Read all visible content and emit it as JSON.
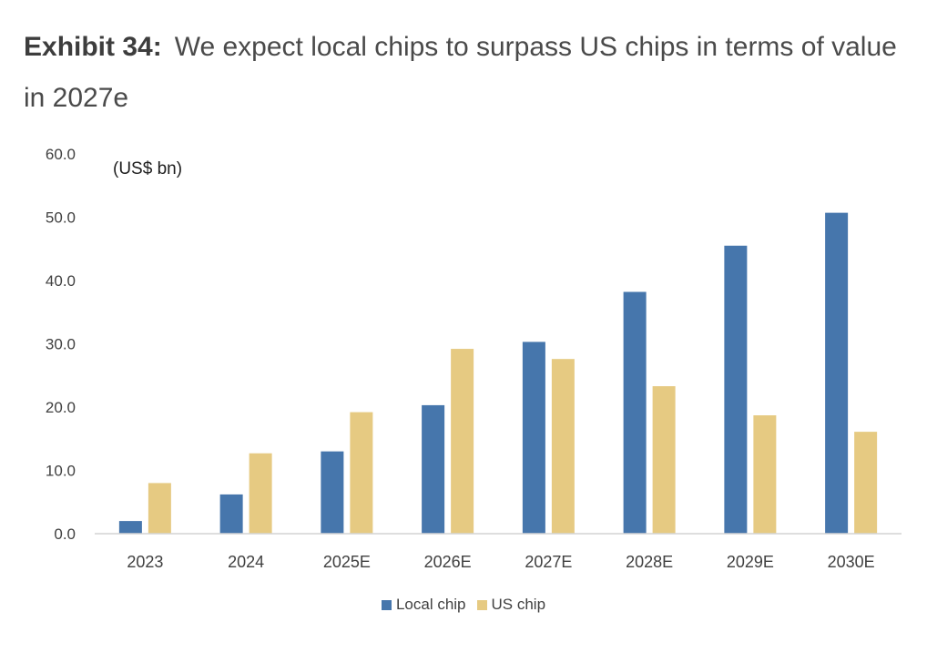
{
  "header": {
    "exhibit_label": "Exhibit 34:",
    "title_text": "We expect local chips to surpass US chips in terms of value in 2027e"
  },
  "chart_data": {
    "type": "bar",
    "title": "We expect local chips to surpass US chips in terms of value in 2027e",
    "unit_label": "(US$ bn)",
    "xlabel": "",
    "ylabel": "",
    "categories": [
      "2023",
      "2024",
      "2025E",
      "2026E",
      "2027E",
      "2028E",
      "2029E",
      "2030E"
    ],
    "series": [
      {
        "name": "Local chip",
        "color": "#4676ac",
        "values": [
          2.0,
          6.2,
          13.0,
          20.3,
          30.3,
          38.2,
          45.5,
          50.7
        ]
      },
      {
        "name": "US chip",
        "color": "#e6ca82",
        "values": [
          8.0,
          12.7,
          19.2,
          29.2,
          27.6,
          23.3,
          18.7,
          16.1
        ]
      }
    ],
    "ylim": [
      0,
      60
    ],
    "yticks": [
      "0.0",
      "10.0",
      "20.0",
      "30.0",
      "40.0",
      "50.0",
      "60.0"
    ],
    "grid": false,
    "legend_position": "bottom"
  }
}
